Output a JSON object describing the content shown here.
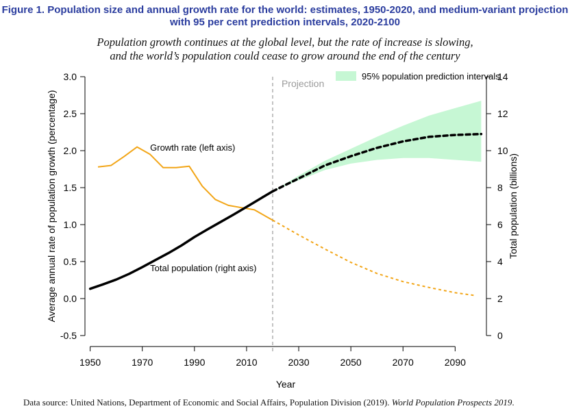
{
  "figure": {
    "title_line1": "Figure 1. Population size and annual growth rate for the world: estimates, 1950-2020, and medium-variant projection",
    "title_line2": "with 95 per cent prediction intervals, 2020-2100",
    "subtitle_line1": "Population growth continues at the global level, but the rate of increase is slowing,",
    "subtitle_line2": "and the world’s population could cease to grow around the end of the century",
    "source_prefix": "Data source: United Nations, Department of Economic and Social Affairs, Population Division (2019). ",
    "source_italic": "World Population Prospects 2019",
    "source_suffix": "."
  },
  "colors": {
    "growth": "#f2a516",
    "population": "#000000",
    "band": "#c6f7d4",
    "projection_line": "#9a9a9a",
    "projection_label": "#9a9a9a"
  },
  "chart_data": {
    "type": "line",
    "xlabel": "Year",
    "ylabel_left": "Average annual rate of population growth (percentage)",
    "ylabel_right": "Total population (billions)",
    "xlim": [
      1948,
      2102
    ],
    "ylim_left": [
      -0.5,
      3.0
    ],
    "ylim_right": [
      0,
      14
    ],
    "x_ticks": [
      1950,
      1970,
      1990,
      2010,
      2030,
      2050,
      2070,
      2090
    ],
    "x_tick_labels": [
      "1950",
      "1970",
      "1990",
      "2010",
      "2030",
      "2050",
      "2070",
      "2090"
    ],
    "y_left_ticks": [
      -0.5,
      0.0,
      0.5,
      1.0,
      1.5,
      2.0,
      2.5,
      3.0
    ],
    "y_left_tick_labels": [
      "-0.5",
      "0.0",
      "0.5",
      "1.0",
      "1.5",
      "2.0",
      "2.5",
      "3.0"
    ],
    "y_right_ticks": [
      0,
      2,
      4,
      6,
      8,
      10,
      12,
      14
    ],
    "y_right_tick_labels": [
      "0",
      "2",
      "4",
      "6",
      "8",
      "10",
      "12",
      "14"
    ],
    "projection_year": 2020,
    "projection_label": "Projection",
    "legend": {
      "label": "95% population prediction intervals",
      "position": "top-right"
    },
    "annotations": [
      {
        "text": "Growth rate (left axis)",
        "x": 1973,
        "y_left": 2.0
      },
      {
        "text": "Total population (right axis)",
        "x": 1973,
        "y_left": 0.37
      }
    ],
    "series": [
      {
        "name": "Growth rate estimates",
        "axis": "left",
        "style": "solid",
        "x": [
          1953,
          1958,
          1963,
          1968,
          1973,
          1978,
          1983,
          1988,
          1993,
          1998,
          2003,
          2008,
          2013,
          2018,
          2020
        ],
        "values": [
          1.78,
          1.8,
          1.92,
          2.05,
          1.95,
          1.77,
          1.77,
          1.79,
          1.52,
          1.34,
          1.26,
          1.23,
          1.2,
          1.1,
          1.06
        ]
      },
      {
        "name": "Growth rate projection",
        "axis": "left",
        "style": "dotted",
        "x": [
          2020,
          2030,
          2040,
          2050,
          2060,
          2070,
          2080,
          2090,
          2098
        ],
        "values": [
          1.06,
          0.86,
          0.67,
          0.49,
          0.34,
          0.23,
          0.15,
          0.08,
          0.04
        ]
      },
      {
        "name": "Total population estimates",
        "axis": "right",
        "style": "solid",
        "x": [
          1950,
          1955,
          1960,
          1965,
          1970,
          1975,
          1980,
          1985,
          1990,
          1995,
          2000,
          2005,
          2010,
          2015,
          2020
        ],
        "values": [
          2.53,
          2.77,
          3.03,
          3.34,
          3.7,
          4.08,
          4.46,
          4.87,
          5.33,
          5.74,
          6.14,
          6.54,
          6.96,
          7.38,
          7.8
        ]
      },
      {
        "name": "Total population projection",
        "axis": "right",
        "style": "dotted",
        "x": [
          2020,
          2030,
          2040,
          2050,
          2060,
          2070,
          2080,
          2090,
          2100
        ],
        "values": [
          7.8,
          8.5,
          9.2,
          9.7,
          10.15,
          10.5,
          10.75,
          10.85,
          10.9
        ]
      },
      {
        "name": "95% prediction interval upper",
        "axis": "right",
        "style": "band-upper",
        "x": [
          2020,
          2030,
          2040,
          2050,
          2060,
          2070,
          2080,
          2090,
          2100
        ],
        "values": [
          7.8,
          8.65,
          9.45,
          10.1,
          10.75,
          11.35,
          11.9,
          12.3,
          12.7
        ]
      },
      {
        "name": "95% prediction interval lower",
        "axis": "right",
        "style": "band-lower",
        "x": [
          2020,
          2030,
          2040,
          2050,
          2060,
          2070,
          2080,
          2090,
          2100
        ],
        "values": [
          7.8,
          8.4,
          8.95,
          9.3,
          9.5,
          9.6,
          9.6,
          9.5,
          9.4
        ]
      }
    ]
  }
}
